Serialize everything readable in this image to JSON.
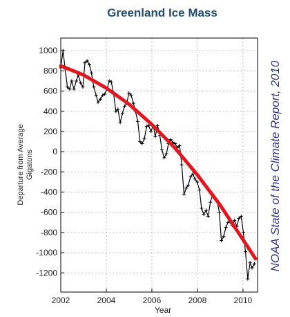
{
  "chart_data": {
    "type": "line",
    "title": "Greenland Ice Mass",
    "xlabel": "Year",
    "ylabel": [
      "Departure from Average",
      "Gigatons"
    ],
    "source": "NOAA State of the Climate Report, 2010",
    "xlim": [
      2002,
      2010.64
    ],
    "ylim": [
      -1390,
      1125
    ],
    "xticks": [
      2002,
      2004,
      2006,
      2008,
      2010
    ],
    "yticks": [
      -1200,
      -1000,
      -800,
      -600,
      -400,
      -200,
      0,
      200,
      400,
      600,
      800,
      1000
    ],
    "grid": true,
    "series": [
      {
        "color": "#000000",
        "marker": "+",
        "x": [
          2002.0,
          2002.1,
          2002.19,
          2002.29,
          2002.39,
          2002.48,
          2002.58,
          2002.68,
          2002.77,
          2002.87,
          2002.97,
          2003.06,
          2003.16,
          2003.26,
          2003.35,
          2003.45,
          2003.55,
          2003.64,
          2003.74,
          2003.84,
          2003.93,
          2004.03,
          2004.13,
          2004.22,
          2004.32,
          2004.42,
          2004.51,
          2004.61,
          2004.71,
          2004.8,
          2004.9,
          2004.99,
          2005.09,
          2005.19,
          2005.28,
          2005.38,
          2005.48,
          2005.57,
          2005.67,
          2005.77,
          2005.86,
          2005.96,
          2006.06,
          2006.15,
          2006.25,
          2006.35,
          2006.44,
          2006.54,
          2006.64,
          2006.73,
          2006.83,
          2006.93,
          2007.02,
          2007.12,
          2007.22,
          2007.31,
          2007.41,
          2007.51,
          2007.6,
          2007.7,
          2007.8,
          2007.89,
          2007.99,
          2008.09,
          2008.18,
          2008.28,
          2008.38,
          2008.47,
          2008.57,
          2008.67,
          2008.76,
          2008.86,
          2008.96,
          2009.05,
          2009.15,
          2009.25,
          2009.34,
          2009.44,
          2009.53,
          2009.63,
          2009.73,
          2009.82,
          2009.92,
          2010.02,
          2010.11,
          2010.21,
          2010.31,
          2010.4,
          2010.5
        ],
        "values": [
          830,
          1000,
          820,
          640,
          620,
          700,
          620,
          700,
          760,
          680,
          640,
          880,
          900,
          860,
          780,
          640,
          560,
          490,
          520,
          560,
          570,
          620,
          700,
          690,
          580,
          400,
          420,
          290,
          380,
          450,
          480,
          580,
          560,
          480,
          400,
          300,
          100,
          80,
          130,
          250,
          260,
          200,
          260,
          150,
          260,
          160,
          20,
          -60,
          -20,
          80,
          120,
          90,
          80,
          40,
          60,
          -130,
          -420,
          -360,
          -330,
          -250,
          -220,
          -270,
          -300,
          -380,
          -560,
          -620,
          -580,
          -640,
          -500,
          -420,
          -460,
          -480,
          -600,
          -880,
          -840,
          -750,
          -700,
          -700,
          -730,
          -680,
          -740,
          -660,
          -640,
          -800,
          -990,
          -1260,
          -1100,
          -1150,
          -1110
        ]
      },
      {
        "color": "#e8141b",
        "x": [
          2002,
          2003,
          2004,
          2005,
          2006,
          2007,
          2008,
          2009,
          2010,
          2010.55
        ],
        "values": [
          850,
          760,
          630,
          470,
          270,
          40,
          -230,
          -530,
          -870,
          -1060
        ]
      }
    ]
  }
}
